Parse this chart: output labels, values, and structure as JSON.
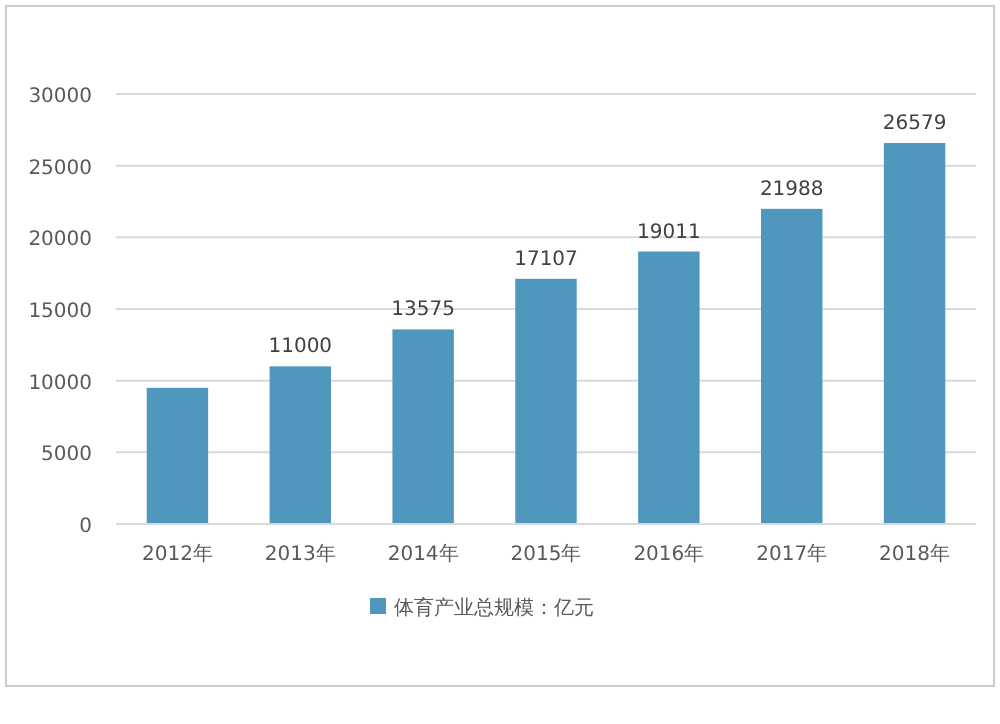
{
  "chart_data": {
    "type": "bar",
    "categories": [
      "2012年",
      "2013年",
      "2014年",
      "2015年",
      "2016年",
      "2017年",
      "2018年"
    ],
    "series": [
      {
        "name": "体育产业总规模：亿元",
        "color": "#4f97bd",
        "values": [
          9500,
          11000,
          13575,
          17107,
          19011,
          21988,
          26579
        ],
        "value_labels": [
          null,
          "11000",
          "13575",
          "17107",
          "19011",
          "21988",
          "26579"
        ]
      }
    ],
    "ylim": [
      0,
      30000
    ],
    "yticks": [
      0,
      5000,
      10000,
      15000,
      20000,
      25000,
      30000
    ],
    "grid": "y",
    "legend": "bottom"
  }
}
